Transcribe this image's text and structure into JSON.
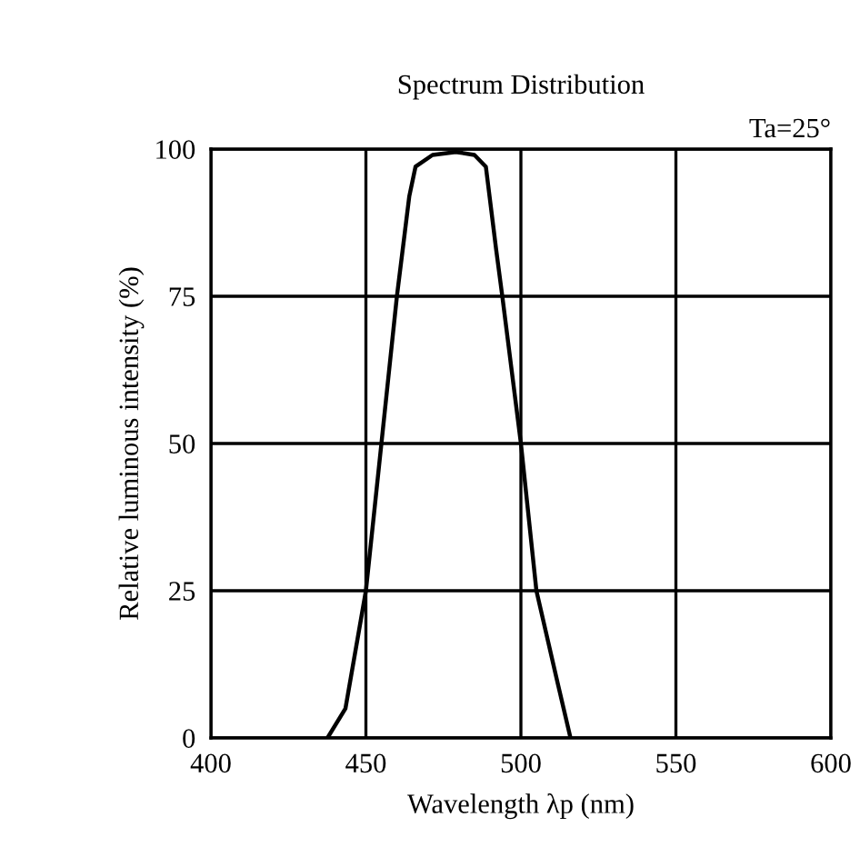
{
  "chart_data": {
    "type": "line",
    "title": "Spectrum Distribution",
    "xlabel": "Wavelength λp (nm)",
    "ylabel": "Relative luminous intensity (%)",
    "annotations": [
      "Ta=25°"
    ],
    "series": [
      {
        "color": "#000000",
        "x": [
          437.6,
          443.4,
          450,
          455,
          460,
          464,
          466,
          471.5,
          479,
          485,
          488.7,
          492,
          494,
          500,
          505,
          512,
          516
        ],
        "values": [
          0,
          5,
          25,
          50,
          75,
          92,
          97,
          99,
          99.5,
          99,
          97,
          83,
          75,
          50,
          25,
          9,
          0
        ]
      }
    ],
    "xlim": [
      400,
      600
    ],
    "ylim": [
      0,
      100
    ],
    "xticks": [
      400,
      450,
      500,
      550,
      600
    ],
    "yticks": [
      0,
      25,
      50,
      75,
      100
    ],
    "grid": true,
    "legend": false,
    "marker": "none",
    "line_style": "solid"
  }
}
